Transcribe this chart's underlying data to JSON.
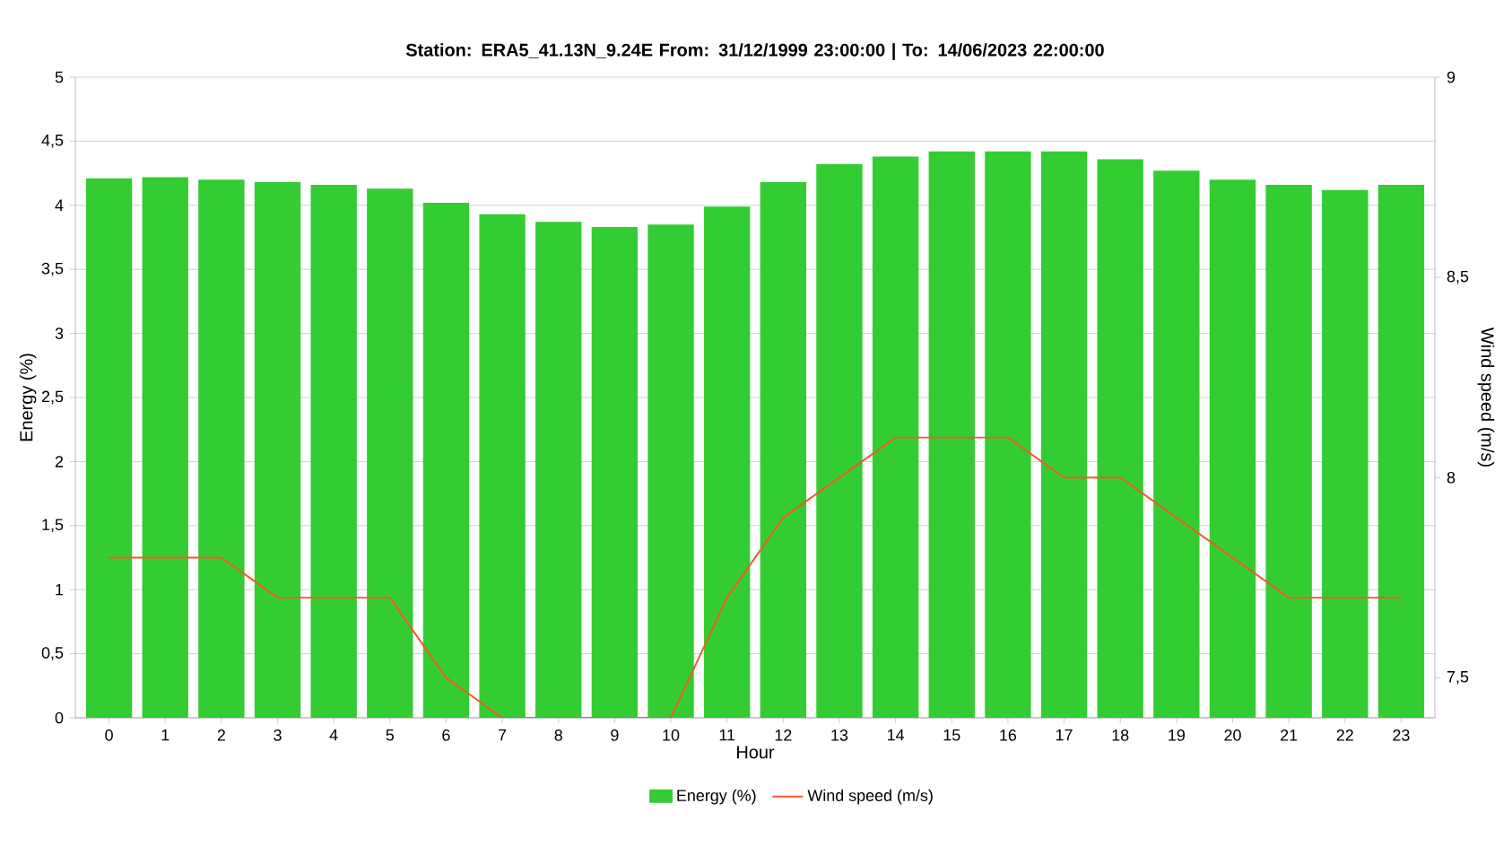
{
  "chart_data": {
    "type": "bar",
    "title": "Station: ERA5_41.13N_9.24E From: 31/12/1999 23:00:00 | To: 14/06/2023 22:00:00",
    "xlabel": "Hour",
    "ylabel": "Energy (%)",
    "y2label": "Wind speed (m/s)",
    "categories": [
      "0",
      "1",
      "2",
      "3",
      "4",
      "5",
      "6",
      "7",
      "8",
      "9",
      "10",
      "11",
      "12",
      "13",
      "14",
      "15",
      "16",
      "17",
      "18",
      "19",
      "20",
      "21",
      "22",
      "23"
    ],
    "series": [
      {
        "name": "Energy (%)",
        "color": "#33cc33",
        "values": [
          4.21,
          4.22,
          4.2,
          4.18,
          4.16,
          4.13,
          4.02,
          3.93,
          3.87,
          3.83,
          3.85,
          3.99,
          4.18,
          4.32,
          4.38,
          4.42,
          4.42,
          4.42,
          4.36,
          4.27,
          4.2,
          4.16,
          4.12,
          4.16
        ]
      },
      {
        "name": "Wind speed (m/s)",
        "type": "line",
        "axis": "y2",
        "color": "#f05a28",
        "values": [
          7.8,
          7.8,
          7.8,
          7.7,
          7.7,
          7.7,
          7.5,
          7.4,
          7.4,
          7.4,
          7.4,
          7.7,
          7.9,
          8.0,
          8.1,
          8.1,
          8.1,
          8.0,
          8.0,
          7.9,
          7.8,
          7.7,
          7.7,
          7.7
        ]
      }
    ],
    "ylim": [
      0,
      5
    ],
    "yticks": [
      0,
      {
        "value": 0.5,
        "label": "0,5"
      },
      1,
      {
        "value": 1.5,
        "label": "1,5"
      },
      2,
      {
        "value": 2.5,
        "label": "2,5"
      },
      3,
      {
        "value": 3.5,
        "label": "3,5"
      },
      4,
      {
        "value": 4.5,
        "label": "4,5"
      },
      5
    ],
    "y2lim": [
      7.4,
      9
    ],
    "y2ticks": [
      {
        "value": 7.5,
        "label": "7,5"
      },
      8,
      {
        "value": 8.5,
        "label": "8,5"
      },
      9
    ],
    "grid": "y",
    "legend": "bottom",
    "marker": "none",
    "line_style": "solid"
  }
}
